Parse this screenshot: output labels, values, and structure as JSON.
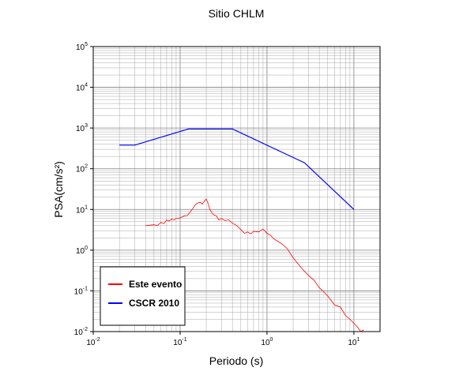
{
  "chart_data": {
    "type": "line",
    "title": "Sitio CHLM",
    "xlabel": "Periodo (s)",
    "ylabel": "PSA(cm/s²)",
    "x_scale": "log",
    "y_scale": "log",
    "xlim": [
      0.01,
      20
    ],
    "ylim": [
      0.01,
      100000
    ],
    "grid": true,
    "legend_position": "bottom-left",
    "x_ticks": [
      {
        "base": "10",
        "exp": "-2",
        "value": 0.01
      },
      {
        "base": "10",
        "exp": "-1",
        "value": 0.1
      },
      {
        "base": "10",
        "exp": "0",
        "value": 1
      },
      {
        "base": "10",
        "exp": "1",
        "value": 10
      }
    ],
    "y_ticks": [
      {
        "base": "10",
        "exp": "-2",
        "value": 0.01
      },
      {
        "base": "10",
        "exp": "-1",
        "value": 0.1
      },
      {
        "base": "10",
        "exp": "0",
        "value": 1
      },
      {
        "base": "10",
        "exp": "1",
        "value": 10
      },
      {
        "base": "10",
        "exp": "2",
        "value": 100
      },
      {
        "base": "10",
        "exp": "3",
        "value": 1000
      },
      {
        "base": "10",
        "exp": "4",
        "value": 10000
      },
      {
        "base": "10",
        "exp": "5",
        "value": 100000
      }
    ],
    "series": [
      {
        "name": "Este evento",
        "color": "#ff0000",
        "x": [
          0.04,
          0.05,
          0.055,
          0.06,
          0.065,
          0.07,
          0.075,
          0.08,
          0.085,
          0.09,
          0.1,
          0.11,
          0.12,
          0.13,
          0.14,
          0.15,
          0.16,
          0.17,
          0.18,
          0.19,
          0.2,
          0.21,
          0.22,
          0.24,
          0.26,
          0.28,
          0.3,
          0.33,
          0.36,
          0.4,
          0.45,
          0.5,
          0.55,
          0.6,
          0.65,
          0.7,
          0.8,
          0.9,
          1.0,
          1.1,
          1.2,
          1.3,
          1.5,
          1.7,
          2.0,
          2.3,
          2.6,
          3.0,
          3.5,
          4.0,
          4.5,
          5.0,
          6.0,
          7.0,
          8.0,
          9.0,
          10.0,
          11.0,
          12.0,
          13.0
        ],
        "y": [
          4.0,
          4.2,
          4.0,
          4.8,
          4.5,
          5.5,
          5.2,
          5.8,
          5.5,
          6.0,
          6.2,
          6.8,
          7.0,
          8.5,
          10.5,
          13.0,
          14.5,
          15.0,
          13.5,
          16.0,
          18.0,
          14.0,
          10.0,
          7.5,
          7.0,
          5.5,
          6.0,
          5.3,
          5.6,
          4.6,
          4.0,
          3.2,
          2.6,
          2.8,
          2.5,
          2.9,
          2.8,
          3.3,
          2.6,
          2.3,
          1.9,
          1.7,
          1.4,
          1.1,
          0.65,
          0.45,
          0.33,
          0.24,
          0.18,
          0.12,
          0.095,
          0.075,
          0.045,
          0.04,
          0.025,
          0.02,
          0.016,
          0.013,
          0.01,
          0.011
        ]
      },
      {
        "name": "CSCR 2010",
        "color": "#0000ff",
        "x": [
          0.02,
          0.03,
          0.125,
          0.4,
          2.7,
          10.0
        ],
        "y": [
          380,
          380,
          950,
          950,
          140,
          10
        ]
      }
    ]
  },
  "legend": {
    "items": [
      {
        "label": "Este evento",
        "color": "#ff0000"
      },
      {
        "label": "CSCR 2010",
        "color": "#0000ff"
      }
    ]
  }
}
